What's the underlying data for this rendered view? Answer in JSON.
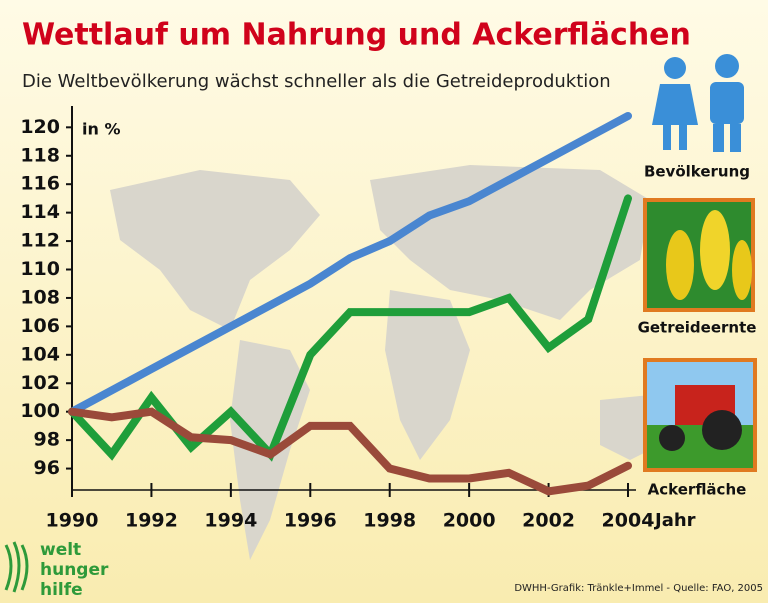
{
  "chart_data": {
    "type": "line",
    "title": "Wettlauf um Nahrung und Ackerflächen",
    "subtitle": "Die Weltbevölkerung wächst schneller als die Getreideproduktion",
    "y_label": "in %",
    "x_label": "Jahr",
    "x": [
      1990,
      1991,
      1992,
      1993,
      1994,
      1995,
      1996,
      1997,
      1998,
      1999,
      2000,
      2001,
      2002,
      2003,
      2004
    ],
    "xlim": [
      1990,
      2004
    ],
    "xticks": [
      1990,
      1992,
      1994,
      1996,
      1998,
      2000,
      2002,
      2004
    ],
    "ylim": [
      94,
      121.5
    ],
    "yticks": [
      96,
      98,
      100,
      102,
      104,
      106,
      108,
      110,
      112,
      114,
      116,
      118,
      120
    ],
    "ytick_label_colors": [
      "#111111",
      "#111111",
      "#d0021b",
      "#111111",
      "#111111",
      "#111111",
      "#111111",
      "#111111",
      "#111111",
      "#111111",
      "#111111",
      "#111111",
      "#111111"
    ],
    "series": [
      {
        "name": "Bevölkerung",
        "color": "#4a86d0",
        "values": [
          100,
          101.5,
          103,
          104.5,
          106,
          107.5,
          109,
          110.8,
          112,
          113.8,
          114.8,
          116.3,
          117.8,
          119.3,
          120.8
        ]
      },
      {
        "name": "Getreideernte",
        "color": "#1f9e3a",
        "values": [
          100,
          97,
          101,
          97.5,
          100,
          97,
          104,
          107,
          107,
          107,
          107,
          108,
          104.5,
          106.5,
          115
        ]
      },
      {
        "name": "Ackerfläche",
        "color": "#9a4a3a",
        "values": [
          100,
          99.6,
          100,
          98.2,
          98,
          97,
          99,
          99,
          96,
          95.3,
          95.3,
          95.7,
          94.4,
          94.8,
          96.2
        ]
      }
    ],
    "logo": [
      "welt",
      "hunger",
      "hilfe"
    ],
    "source": "DWHH-Grafik: Tränkle+Immel - Quelle: FAO, 2005"
  }
}
